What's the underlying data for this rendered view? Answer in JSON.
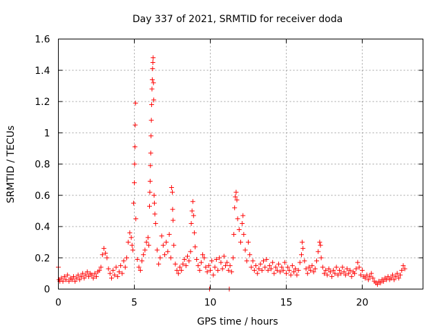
{
  "chart_data": {
    "type": "scatter",
    "title": "Day 337 of 2021, SRMTID for receiver doda",
    "xlabel": "GPS time / hours",
    "ylabel": "SRMTID / TECUs",
    "xlim": [
      0,
      24
    ],
    "ylim": [
      0,
      1.6
    ],
    "grid": true,
    "x_ticks": [
      0,
      5,
      10,
      15,
      20
    ],
    "x_tick_labels": [
      "0",
      "5",
      "10",
      "15",
      "20"
    ],
    "y_ticks": [
      0,
      0.2,
      0.4,
      0.6,
      0.8,
      1.0,
      1.2,
      1.4,
      1.6
    ],
    "y_tick_labels": [
      "0",
      "0.2",
      "0.4",
      "0.6",
      "0.8",
      "1",
      "1.2",
      "1.4",
      "1.6"
    ],
    "marker": "+",
    "series": [
      {
        "name": "SRMTID",
        "color": "#ff0000",
        "points": [
          [
            0.0,
            0.14
          ],
          [
            0.05,
            0.06
          ],
          [
            0.1,
            0.05
          ],
          [
            0.2,
            0.07
          ],
          [
            0.3,
            0.05
          ],
          [
            0.4,
            0.08
          ],
          [
            0.5,
            0.06
          ],
          [
            0.6,
            0.09
          ],
          [
            0.7,
            0.05
          ],
          [
            0.8,
            0.07
          ],
          [
            0.9,
            0.06
          ],
          [
            1.0,
            0.08
          ],
          [
            1.1,
            0.05
          ],
          [
            1.2,
            0.07
          ],
          [
            1.3,
            0.09
          ],
          [
            1.4,
            0.06
          ],
          [
            1.5,
            0.08
          ],
          [
            1.6,
            0.1
          ],
          [
            1.7,
            0.07
          ],
          [
            1.8,
            0.09
          ],
          [
            1.9,
            0.11
          ],
          [
            2.0,
            0.08
          ],
          [
            2.1,
            0.1
          ],
          [
            2.2,
            0.09
          ],
          [
            2.3,
            0.07
          ],
          [
            2.4,
            0.1
          ],
          [
            2.5,
            0.08
          ],
          [
            2.6,
            0.11
          ],
          [
            2.7,
            0.12
          ],
          [
            2.8,
            0.14
          ],
          [
            2.9,
            0.22
          ],
          [
            3.0,
            0.26
          ],
          [
            3.1,
            0.23
          ],
          [
            3.2,
            0.2
          ],
          [
            3.3,
            0.13
          ],
          [
            3.4,
            0.1
          ],
          [
            3.5,
            0.07
          ],
          [
            3.6,
            0.12
          ],
          [
            3.7,
            0.09
          ],
          [
            3.8,
            0.14
          ],
          [
            3.9,
            0.08
          ],
          [
            4.0,
            0.11
          ],
          [
            4.1,
            0.15
          ],
          [
            4.2,
            0.1
          ],
          [
            4.3,
            0.18
          ],
          [
            4.4,
            0.14
          ],
          [
            4.5,
            0.2
          ],
          [
            4.6,
            0.3
          ],
          [
            4.7,
            0.36
          ],
          [
            4.8,
            0.33
          ],
          [
            4.85,
            0.28
          ],
          [
            4.9,
            0.25
          ],
          [
            4.95,
            0.55
          ],
          [
            5.0,
            0.68
          ],
          [
            5.02,
            0.8
          ],
          [
            5.04,
            0.91
          ],
          [
            5.06,
            1.05
          ],
          [
            5.08,
            1.19
          ],
          [
            5.1,
            0.45
          ],
          [
            5.2,
            0.19
          ],
          [
            5.3,
            0.14
          ],
          [
            5.4,
            0.12
          ],
          [
            5.5,
            0.18
          ],
          [
            5.6,
            0.22
          ],
          [
            5.7,
            0.25
          ],
          [
            5.8,
            0.3
          ],
          [
            5.9,
            0.33
          ],
          [
            5.95,
            0.28
          ],
          [
            6.0,
            0.53
          ],
          [
            6.02,
            0.62
          ],
          [
            6.04,
            0.69
          ],
          [
            6.06,
            0.79
          ],
          [
            6.08,
            0.87
          ],
          [
            6.1,
            0.98
          ],
          [
            6.12,
            1.08
          ],
          [
            6.14,
            1.18
          ],
          [
            6.16,
            1.28
          ],
          [
            6.18,
            1.34
          ],
          [
            6.2,
            1.41
          ],
          [
            6.22,
            1.45
          ],
          [
            6.24,
            1.48
          ],
          [
            6.26,
            1.32
          ],
          [
            6.28,
            1.21
          ],
          [
            6.3,
            0.6
          ],
          [
            6.32,
            0.55
          ],
          [
            6.35,
            0.48
          ],
          [
            6.4,
            0.42
          ],
          [
            6.5,
            0.25
          ],
          [
            6.6,
            0.16
          ],
          [
            6.7,
            0.2
          ],
          [
            6.8,
            0.34
          ],
          [
            6.9,
            0.28
          ],
          [
            7.0,
            0.22
          ],
          [
            7.1,
            0.3
          ],
          [
            7.2,
            0.24
          ],
          [
            7.3,
            0.35
          ],
          [
            7.4,
            0.2
          ],
          [
            7.45,
            0.65
          ],
          [
            7.5,
            0.62
          ],
          [
            7.52,
            0.51
          ],
          [
            7.55,
            0.44
          ],
          [
            7.6,
            0.28
          ],
          [
            7.7,
            0.16
          ],
          [
            7.8,
            0.12
          ],
          [
            7.9,
            0.1
          ],
          [
            8.0,
            0.14
          ],
          [
            8.1,
            0.12
          ],
          [
            8.2,
            0.16
          ],
          [
            8.3,
            0.19
          ],
          [
            8.4,
            0.15
          ],
          [
            8.5,
            0.21
          ],
          [
            8.6,
            0.18
          ],
          [
            8.7,
            0.24
          ],
          [
            8.75,
            0.42
          ],
          [
            8.8,
            0.5
          ],
          [
            8.85,
            0.56
          ],
          [
            8.9,
            0.47
          ],
          [
            8.95,
            0.36
          ],
          [
            9.0,
            0.27
          ],
          [
            9.1,
            0.19
          ],
          [
            9.2,
            0.15
          ],
          [
            9.3,
            0.12
          ],
          [
            9.4,
            0.17
          ],
          [
            9.5,
            0.22
          ],
          [
            9.6,
            0.2
          ],
          [
            9.7,
            0.14
          ],
          [
            9.8,
            0.11
          ],
          [
            9.9,
            0.15
          ],
          [
            10.0,
            0.12
          ],
          [
            10.1,
            0.18
          ],
          [
            10.2,
            0.09
          ],
          [
            10.3,
            0.14
          ],
          [
            10.4,
            0.19
          ],
          [
            10.5,
            0.12
          ],
          [
            10.6,
            0.2
          ],
          [
            10.7,
            0.17
          ],
          [
            10.8,
            0.13
          ],
          [
            10.9,
            0.21
          ],
          [
            11.0,
            0.15
          ],
          [
            11.1,
            0.17
          ],
          [
            11.2,
            0.12
          ],
          [
            11.3,
            0.15
          ],
          [
            11.4,
            0.11
          ],
          [
            11.5,
            0.2
          ],
          [
            11.55,
            0.35
          ],
          [
            11.6,
            0.52
          ],
          [
            11.65,
            0.59
          ],
          [
            11.7,
            0.62
          ],
          [
            11.75,
            0.57
          ],
          [
            11.8,
            0.45
          ],
          [
            11.9,
            0.38
          ],
          [
            12.0,
            0.3
          ],
          [
            12.1,
            0.42
          ],
          [
            12.15,
            0.47
          ],
          [
            12.2,
            0.35
          ],
          [
            12.3,
            0.25
          ],
          [
            12.4,
            0.18
          ],
          [
            12.5,
            0.3
          ],
          [
            12.6,
            0.22
          ],
          [
            12.7,
            0.14
          ],
          [
            12.8,
            0.18
          ],
          [
            12.9,
            0.12
          ],
          [
            13.0,
            0.15
          ],
          [
            13.1,
            0.1
          ],
          [
            13.2,
            0.13
          ],
          [
            13.3,
            0.16
          ],
          [
            13.4,
            0.12
          ],
          [
            13.5,
            0.18
          ],
          [
            13.6,
            0.14
          ],
          [
            13.7,
            0.19
          ],
          [
            13.8,
            0.12
          ],
          [
            13.9,
            0.15
          ],
          [
            14.0,
            0.13
          ],
          [
            14.1,
            0.17
          ],
          [
            14.2,
            0.1
          ],
          [
            14.3,
            0.14
          ],
          [
            14.4,
            0.12
          ],
          [
            14.5,
            0.16
          ],
          [
            14.6,
            0.11
          ],
          [
            14.7,
            0.14
          ],
          [
            14.8,
            0.12
          ],
          [
            14.9,
            0.17
          ],
          [
            15.0,
            0.1
          ],
          [
            15.1,
            0.14
          ],
          [
            15.2,
            0.12
          ],
          [
            15.3,
            0.09
          ],
          [
            15.4,
            0.15
          ],
          [
            15.5,
            0.11
          ],
          [
            15.6,
            0.13
          ],
          [
            15.7,
            0.09
          ],
          [
            15.8,
            0.12
          ],
          [
            15.9,
            0.17
          ],
          [
            16.0,
            0.22
          ],
          [
            16.05,
            0.3
          ],
          [
            16.1,
            0.26
          ],
          [
            16.2,
            0.18
          ],
          [
            16.3,
            0.13
          ],
          [
            16.4,
            0.1
          ],
          [
            16.5,
            0.14
          ],
          [
            16.6,
            0.12
          ],
          [
            16.7,
            0.15
          ],
          [
            16.8,
            0.11
          ],
          [
            16.9,
            0.13
          ],
          [
            17.0,
            0.18
          ],
          [
            17.1,
            0.24
          ],
          [
            17.2,
            0.3
          ],
          [
            17.25,
            0.28
          ],
          [
            17.3,
            0.2
          ],
          [
            17.4,
            0.14
          ],
          [
            17.5,
            0.1
          ],
          [
            17.6,
            0.12
          ],
          [
            17.7,
            0.09
          ],
          [
            17.8,
            0.13
          ],
          [
            17.9,
            0.11
          ],
          [
            18.0,
            0.08
          ],
          [
            18.1,
            0.12
          ],
          [
            18.2,
            0.1
          ],
          [
            18.3,
            0.14
          ],
          [
            18.4,
            0.09
          ],
          [
            18.5,
            0.12
          ],
          [
            18.6,
            0.1
          ],
          [
            18.7,
            0.14
          ],
          [
            18.8,
            0.11
          ],
          [
            18.9,
            0.09
          ],
          [
            19.0,
            0.13
          ],
          [
            19.1,
            0.1
          ],
          [
            19.2,
            0.12
          ],
          [
            19.3,
            0.08
          ],
          [
            19.4,
            0.11
          ],
          [
            19.5,
            0.1
          ],
          [
            19.6,
            0.13
          ],
          [
            19.7,
            0.17
          ],
          [
            19.8,
            0.14
          ],
          [
            19.9,
            0.09
          ],
          [
            20.0,
            0.12
          ],
          [
            20.1,
            0.08
          ],
          [
            20.2,
            0.07
          ],
          [
            20.3,
            0.09
          ],
          [
            20.4,
            0.06
          ],
          [
            20.5,
            0.08
          ],
          [
            20.6,
            0.1
          ],
          [
            20.7,
            0.07
          ],
          [
            20.8,
            0.05
          ],
          [
            20.9,
            0.04
          ],
          [
            21.0,
            0.03
          ],
          [
            21.1,
            0.05
          ],
          [
            21.2,
            0.04
          ],
          [
            21.3,
            0.06
          ],
          [
            21.4,
            0.05
          ],
          [
            21.5,
            0.07
          ],
          [
            21.6,
            0.06
          ],
          [
            21.7,
            0.08
          ],
          [
            21.8,
            0.06
          ],
          [
            21.9,
            0.07
          ],
          [
            22.0,
            0.09
          ],
          [
            22.1,
            0.06
          ],
          [
            22.2,
            0.08
          ],
          [
            22.3,
            0.1
          ],
          [
            22.4,
            0.07
          ],
          [
            22.5,
            0.09
          ],
          [
            22.6,
            0.12
          ],
          [
            22.7,
            0.15
          ],
          [
            22.8,
            0.13
          ],
          [
            9.95,
            0.0
          ],
          [
            11.25,
            0.0
          ]
        ]
      }
    ]
  }
}
